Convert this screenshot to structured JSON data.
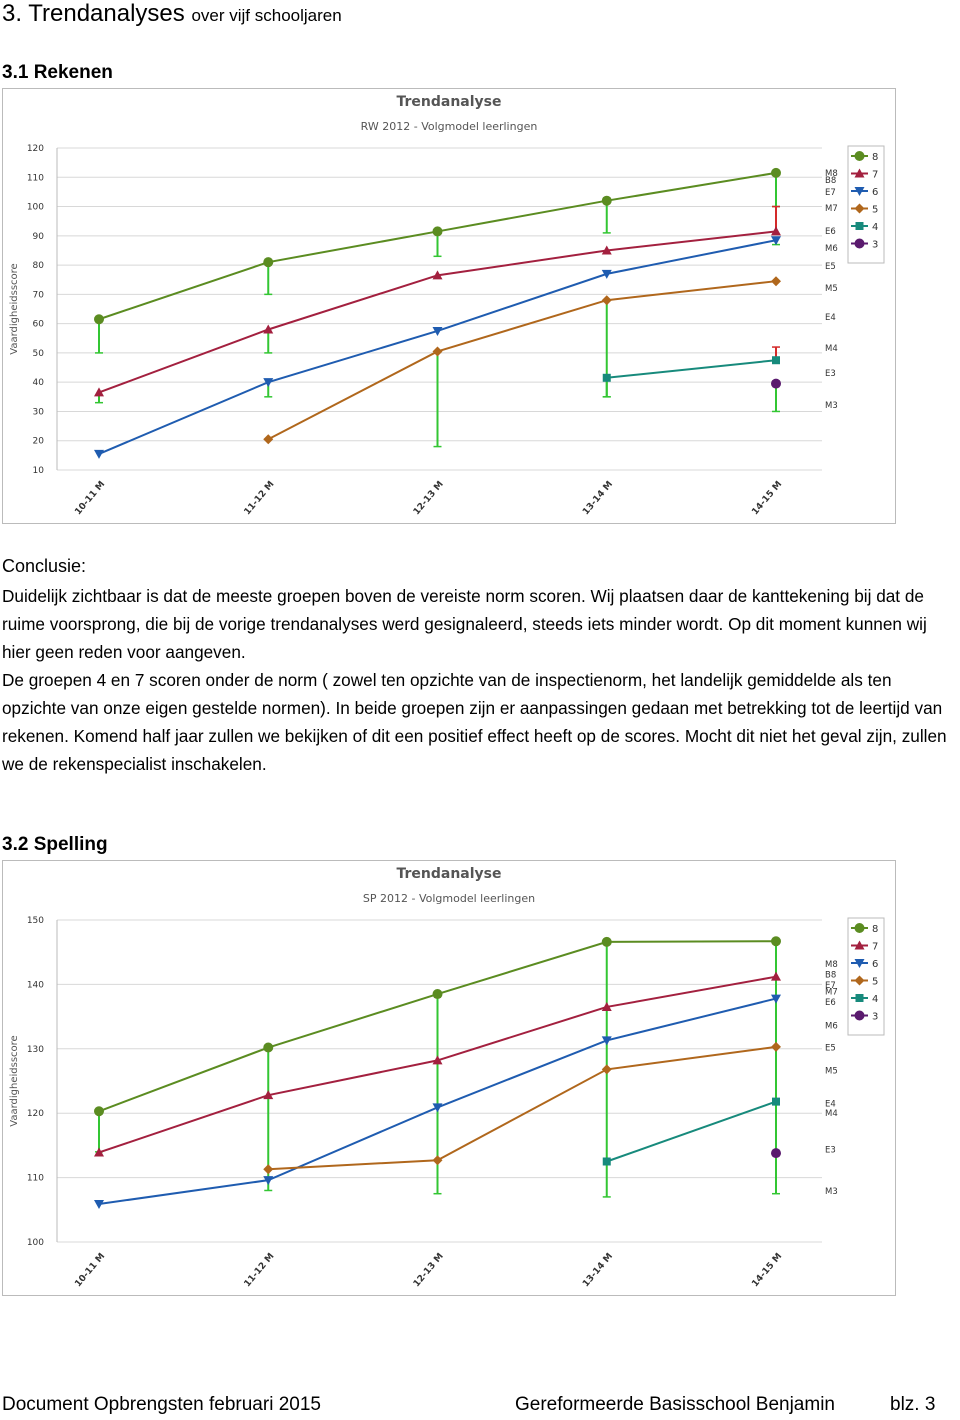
{
  "header": {
    "title": "3. Trendanalyses",
    "subtitle": "over vijf schooljaren"
  },
  "section_1": {
    "title": "3.1 Rekenen"
  },
  "conclusion": {
    "label": "Conclusie:",
    "paragraphs": [
      "Duidelijk zichtbaar is dat de meeste groepen boven de vereiste norm scoren. Wij plaatsen daar de kanttekening bij dat de ruime voorsprong, die bij de vorige trendanalyses werd gesignaleerd, steeds iets minder wordt. Op dit moment kunnen wij hier geen reden voor aangeven.",
      "De groepen 4 en 7 scoren onder de norm ( zowel ten opzichte van de inspectienorm, het landelijk gemiddelde als ten opzichte van onze eigen gestelde normen). In beide groepen zijn er aanpassingen gedaan met betrekking tot de leertijd van rekenen. Komend half jaar zullen we bekijken of dit een positief effect heeft op de scores. Mocht dit niet het geval zijn, zullen we de rekenspecialist inschakelen."
    ]
  },
  "section_2": {
    "title": "3.2 Spelling"
  },
  "footer": {
    "left": "Document Opbrengsten februari 2015",
    "right": "Gereformeerde Basisschool Benjamin",
    "page": "blz. 3"
  },
  "chart_data": [
    {
      "type": "line",
      "title": "Trendanalyse",
      "subtitle": "RW 2012 - Volgmodel leerlingen",
      "y_label": "Vaardigheidsscore",
      "categories": [
        "10-11 M",
        "11-12 M",
        "12-13 M",
        "13-14 M",
        "14-15 M"
      ],
      "ylim": [
        10,
        120
      ],
      "yticks": [
        10,
        20,
        30,
        40,
        50,
        60,
        70,
        80,
        90,
        100,
        110,
        120
      ],
      "grid": true,
      "legend": "right",
      "y2lim": [
        10,
        120
      ],
      "y2ticks": [
        {
          "value": 111.5,
          "label": "M8"
        },
        {
          "value": 109,
          "label": "B8"
        },
        {
          "value": 105,
          "label": "E7"
        },
        {
          "value": 99.5,
          "label": "M7"
        },
        {
          "value": 91.7,
          "label": "E6"
        },
        {
          "value": 85.8,
          "label": "M6"
        },
        {
          "value": 79.7,
          "label": "E5"
        },
        {
          "value": 72.2,
          "label": "M5"
        },
        {
          "value": 62.3,
          "label": "E4"
        },
        {
          "value": 51.7,
          "label": "M4"
        },
        {
          "value": 43.1,
          "label": "E3"
        },
        {
          "value": 32.2,
          "label": "M3"
        }
      ],
      "norm_color_below": "#33c633",
      "norm_color_above": "#d42a2a",
      "series": [
        {
          "name": "8",
          "color": "#5b8c21",
          "marker": "circle",
          "values": [
            61.5,
            81,
            91.5,
            102,
            111.5
          ],
          "norm": [
            50,
            70,
            83,
            91,
            100
          ]
        },
        {
          "name": "7",
          "color": "#a3203f",
          "marker": "triangle-up",
          "values": [
            36.5,
            58,
            76.5,
            85,
            91.5
          ],
          "norm": [
            33,
            50,
            null,
            null,
            100
          ]
        },
        {
          "name": "6",
          "color": "#1f5cb0",
          "marker": "triangle-down",
          "values": [
            15.5,
            40,
            57.5,
            77,
            88.5
          ],
          "norm": [
            null,
            35,
            null,
            null,
            87
          ]
        },
        {
          "name": "5",
          "color": "#b0671c",
          "marker": "diamond",
          "values": [
            null,
            20.5,
            50.5,
            68,
            74.5
          ],
          "norm": [
            null,
            null,
            18,
            35,
            null
          ]
        },
        {
          "name": "4",
          "color": "#178a7c",
          "marker": "square",
          "values": [
            null,
            null,
            null,
            41.5,
            47.5
          ],
          "norm": [
            null,
            null,
            null,
            35,
            52
          ]
        },
        {
          "name": "3",
          "color": "#5a1a6e",
          "marker": "circle",
          "values": [
            null,
            null,
            null,
            null,
            39.5
          ],
          "norm": [
            null,
            null,
            null,
            null,
            30
          ]
        }
      ]
    },
    {
      "type": "line",
      "title": "Trendanalyse",
      "subtitle": "SP 2012 - Volgmodel leerlingen",
      "y_label": "Vaardigheidsscore",
      "categories": [
        "10-11 M",
        "11-12 M",
        "12-13 M",
        "13-14 M",
        "14-15 M"
      ],
      "ylim": [
        100,
        150
      ],
      "yticks": [
        100,
        110,
        120,
        130,
        140,
        150
      ],
      "grid": true,
      "legend": "right",
      "y2lim": [
        100,
        150
      ],
      "y2ticks": [
        {
          "value": 143.2,
          "label": "M8"
        },
        {
          "value": 141.5,
          "label": "B8"
        },
        {
          "value": 139.9,
          "label": "E7"
        },
        {
          "value": 138.9,
          "label": "M7"
        },
        {
          "value": 137.3,
          "label": "E6"
        },
        {
          "value": 133.6,
          "label": "M6"
        },
        {
          "value": 130.2,
          "label": "E5"
        },
        {
          "value": 126.6,
          "label": "M5"
        },
        {
          "value": 121.5,
          "label": "E4"
        },
        {
          "value": 120,
          "label": "M4"
        },
        {
          "value": 114.4,
          "label": "E3"
        },
        {
          "value": 107.9,
          "label": "M3"
        }
      ],
      "norm_color_below": "#33c633",
      "norm_color_above": "#d42a2a",
      "series": [
        {
          "name": "8",
          "color": "#5b8c21",
          "marker": "circle",
          "values": [
            120.3,
            130.2,
            138.5,
            146.6,
            146.7
          ],
          "norm": [
            114,
            108,
            107.5,
            107,
            107.5
          ]
        },
        {
          "name": "7",
          "color": "#a3203f",
          "marker": "triangle-up",
          "values": [
            113.9,
            122.8,
            128.2,
            136.5,
            141.2
          ],
          "norm": [
            null,
            null,
            null,
            null,
            null
          ]
        },
        {
          "name": "6",
          "color": "#1f5cb0",
          "marker": "triangle-down",
          "values": [
            105.9,
            109.6,
            120.9,
            131.3,
            137.8
          ],
          "norm": [
            null,
            null,
            null,
            null,
            null
          ]
        },
        {
          "name": "5",
          "color": "#b0671c",
          "marker": "diamond",
          "values": [
            null,
            111.3,
            112.7,
            126.8,
            130.3
          ],
          "norm": [
            null,
            null,
            null,
            null,
            null
          ]
        },
        {
          "name": "4",
          "color": "#178a7c",
          "marker": "square",
          "values": [
            null,
            null,
            null,
            112.5,
            121.8
          ],
          "norm": [
            null,
            null,
            null,
            null,
            null
          ]
        },
        {
          "name": "3",
          "color": "#5a1a6e",
          "marker": "circle",
          "values": [
            null,
            null,
            null,
            null,
            113.8
          ],
          "norm": [
            null,
            null,
            null,
            null,
            null
          ]
        }
      ]
    }
  ]
}
